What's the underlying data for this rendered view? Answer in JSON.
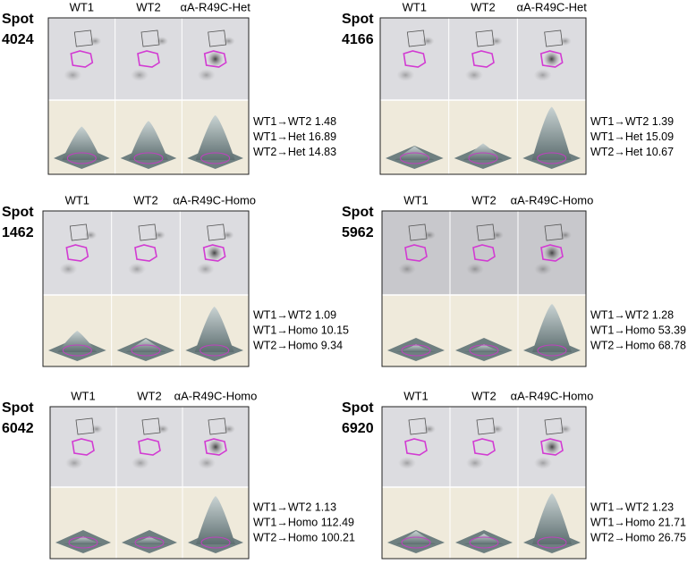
{
  "panels": [
    {
      "spot": "Spot",
      "number": "4024",
      "columns": [
        "WT1",
        "WT2",
        "αA-R49C-Het"
      ],
      "ratios": [
        "WT1→WT2 1.48",
        "WT1→Het 16.89",
        "WT2→Het 14.83"
      ]
    },
    {
      "spot": "Spot",
      "number": "4166",
      "columns": [
        "WT1",
        "WT2",
        "αA-R49C-Het"
      ],
      "ratios": [
        "WT1→WT2 1.39",
        "WT1→Het 15.09",
        "WT2→Het 10.67"
      ]
    },
    {
      "spot": "Spot",
      "number": "1462",
      "columns": [
        "WT1",
        "WT2",
        "αA-R49C-Homo"
      ],
      "ratios": [
        "WT1→WT2 1.09",
        "WT1→Homo 10.15",
        "WT2→Homo 9.34"
      ]
    },
    {
      "spot": "Spot",
      "number": "5962",
      "columns": [
        "WT1",
        "WT2",
        "αA-R49C-Homo"
      ],
      "ratios": [
        "WT1→WT2 1.28",
        "WT1→Homo 53.39",
        "WT2→Homo 68.78"
      ]
    },
    {
      "spot": "Spot",
      "number": "6042",
      "columns": [
        "WT1",
        "WT2",
        "αA-R49C-Homo"
      ],
      "ratios": [
        "WT1→WT2 1.13",
        "WT1→Homo 112.49",
        "WT2→Homo 100.21"
      ]
    },
    {
      "spot": "Spot",
      "number": "6920",
      "columns": [
        "WT1",
        "WT2",
        "αA-R49C-Homo"
      ],
      "ratios": [
        "WT1→WT2 1.23",
        "WT1→Homo 21.71",
        "WT2→Homo 26.75"
      ]
    }
  ]
}
